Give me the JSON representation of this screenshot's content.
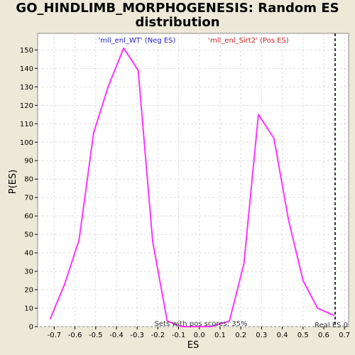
{
  "chart_data": {
    "type": "line",
    "title": "GO_HINDLIMB_MORPHOGENESIS: Random ES distribution",
    "xlabel": "ES",
    "ylabel": "P(ES)",
    "xlim": [
      -0.78,
      0.72
    ],
    "ylim": [
      0,
      159
    ],
    "x_ticks": [
      -0.7,
      -0.6,
      -0.5,
      -0.4,
      -0.3,
      -0.2,
      -0.1,
      0.0,
      0.1,
      0.2,
      0.3,
      0.4,
      0.5,
      0.6,
      0.7
    ],
    "y_ticks": [
      0,
      10,
      20,
      30,
      40,
      50,
      60,
      70,
      80,
      90,
      100,
      110,
      120,
      130,
      140,
      150
    ],
    "grid": true,
    "series": [
      {
        "color": "#ff33ff",
        "x": [
          -0.72,
          -0.65,
          -0.58,
          -0.51,
          -0.44,
          -0.365,
          -0.295,
          -0.225,
          -0.155,
          -0.085,
          -0.015,
          0.055,
          0.145,
          0.215,
          0.285,
          0.36,
          0.43,
          0.5,
          0.57,
          0.65
        ],
        "y": [
          4,
          23,
          47,
          105,
          130,
          151,
          139,
          46,
          3,
          0,
          0,
          0,
          3,
          34,
          115,
          102,
          58,
          25,
          10,
          6
        ]
      }
    ],
    "reference_line": {
      "x": 0.655,
      "label": "Real ES 0",
      "style": "dashed",
      "color": "#333333"
    },
    "legend": {
      "neg": {
        "label": "'mll_enl_WT' (Neg ES)",
        "color": "#2222cc"
      },
      "pos": {
        "label": "'mll_enl_Sirt2' (Pos ES)",
        "color": "#cc2222"
      }
    },
    "annotation": "Sets with pos scores: 35%"
  }
}
